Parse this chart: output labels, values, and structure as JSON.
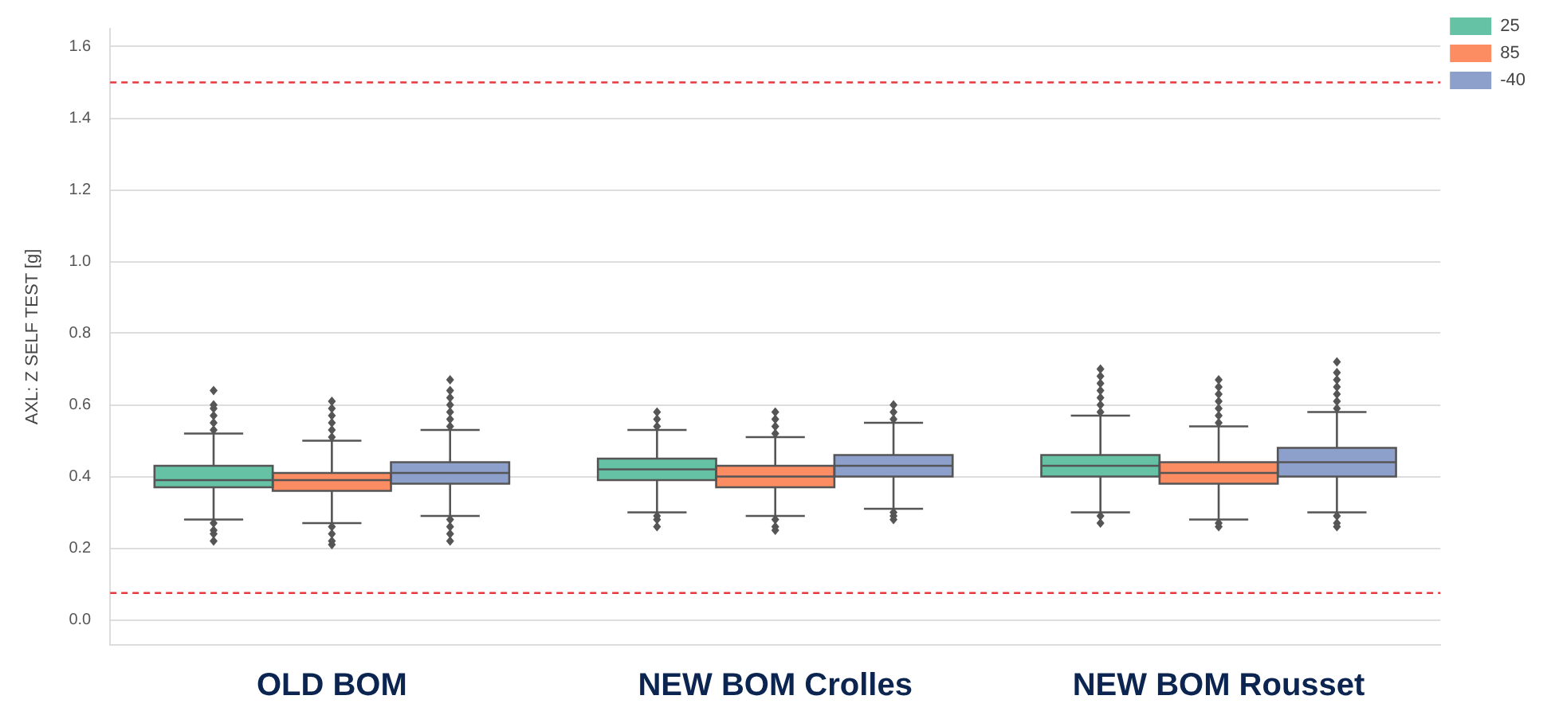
{
  "chart_data": {
    "type": "box",
    "ylabel": "AXL: Z SELF TEST [g]",
    "categories": [
      "OLD BOM",
      "NEW BOM Crolles",
      "NEW BOM Rousset"
    ],
    "series": [
      {
        "name": "25",
        "color": "#66c2a5",
        "boxes": [
          {
            "low": 0.28,
            "q1": 0.37,
            "median": 0.39,
            "q3": 0.43,
            "high": 0.52,
            "outliers": [
              0.53,
              0.55,
              0.57,
              0.59,
              0.6,
              0.64,
              0.27,
              0.25,
              0.24,
              0.22
            ]
          },
          {
            "low": 0.3,
            "q1": 0.39,
            "median": 0.42,
            "q3": 0.45,
            "high": 0.53,
            "outliers": [
              0.54,
              0.56,
              0.58,
              0.29,
              0.28,
              0.26
            ]
          },
          {
            "low": 0.3,
            "q1": 0.4,
            "median": 0.43,
            "q3": 0.46,
            "high": 0.57,
            "outliers": [
              0.58,
              0.6,
              0.62,
              0.64,
              0.66,
              0.68,
              0.7,
              0.29,
              0.27
            ]
          }
        ]
      },
      {
        "name": "85",
        "color": "#fc8d62",
        "boxes": [
          {
            "low": 0.27,
            "q1": 0.36,
            "median": 0.39,
            "q3": 0.41,
            "high": 0.5,
            "outliers": [
              0.51,
              0.53,
              0.55,
              0.57,
              0.59,
              0.61,
              0.26,
              0.24,
              0.22,
              0.21
            ]
          },
          {
            "low": 0.29,
            "q1": 0.37,
            "median": 0.4,
            "q3": 0.43,
            "high": 0.51,
            "outliers": [
              0.52,
              0.54,
              0.56,
              0.58,
              0.28,
              0.26,
              0.25
            ]
          },
          {
            "low": 0.28,
            "q1": 0.38,
            "median": 0.41,
            "q3": 0.44,
            "high": 0.54,
            "outliers": [
              0.55,
              0.57,
              0.59,
              0.61,
              0.63,
              0.65,
              0.67,
              0.27,
              0.26
            ]
          }
        ]
      },
      {
        "name": "-40",
        "color": "#8da0cb",
        "boxes": [
          {
            "low": 0.29,
            "q1": 0.38,
            "median": 0.41,
            "q3": 0.44,
            "high": 0.53,
            "outliers": [
              0.54,
              0.56,
              0.58,
              0.6,
              0.62,
              0.64,
              0.67,
              0.28,
              0.26,
              0.24,
              0.22
            ]
          },
          {
            "low": 0.31,
            "q1": 0.4,
            "median": 0.43,
            "q3": 0.46,
            "high": 0.55,
            "outliers": [
              0.56,
              0.58,
              0.6,
              0.3,
              0.29,
              0.28
            ]
          },
          {
            "low": 0.3,
            "q1": 0.4,
            "median": 0.44,
            "q3": 0.48,
            "high": 0.58,
            "outliers": [
              0.59,
              0.61,
              0.63,
              0.65,
              0.67,
              0.69,
              0.72,
              0.29,
              0.27,
              0.26
            ]
          }
        ]
      }
    ],
    "ylim": [
      -0.07,
      1.65
    ],
    "yticks": [
      {
        "value": 0,
        "label": "0.0"
      },
      0.2,
      0.4,
      0.6,
      0.8,
      {
        "value": 1,
        "label": "1.0"
      },
      1.2,
      1.4,
      1.6
    ],
    "ref_lines": [
      {
        "axis": "y",
        "value": 1.5,
        "color": "#e8383d",
        "line_style": "dashed"
      },
      {
        "axis": "y",
        "value": 0.075,
        "color": "#e8383d",
        "line_style": "dashed"
      }
    ],
    "grid": "y",
    "legend": "top right"
  }
}
